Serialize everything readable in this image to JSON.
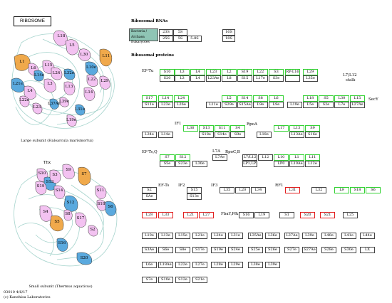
{
  "title": "RIBOSOME",
  "footer": {
    "code": "03010 4/6/17",
    "copyright": "(c) Kanehisa Laboratories"
  },
  "captions": {
    "large": "Large subunit (Haloarcula marismortui)",
    "small": "Small subunit (Thermus aquaticus)"
  },
  "rna": {
    "header": "Ribosomal RNAs",
    "legend1": "Bacteria / Archaea",
    "legend2": "Eukaryotes",
    "row1": [
      "23S",
      "5S",
      "16S"
    ],
    "row2": [
      "25S",
      "5S",
      "5.8S",
      "18S"
    ]
  },
  "proteins_header": "Ribosomal proteins",
  "tags": {
    "eftu": "EF-Tu",
    "l7l12": "L7/L12",
    "stalk": "stalk",
    "secy": "SecY",
    "if1": "IF1",
    "rpoa": "RpoA",
    "eftsq": "EF-Ts,Q",
    "rpocb": "RpoC,B",
    "l7a": "L7A",
    "efts": "EF-Ts",
    "if2": "IF2",
    "if3": "IF3",
    "rf1": "RF1",
    "fbay": "FbaY,Pfk"
  },
  "rows": [
    {
      "y": 97,
      "boxes": [
        [
          "S10",
          224,
          "g"
        ],
        [
          "L3",
          245,
          "g"
        ],
        [
          "L4",
          267,
          "g"
        ],
        [
          "L23",
          289,
          "g"
        ],
        [
          "L2",
          311,
          "g"
        ],
        [
          "S19",
          333,
          "g"
        ],
        [
          "L22",
          355,
          "g"
        ],
        [
          "S3",
          377,
          "g"
        ],
        [
          "RP-L16",
          400,
          "g"
        ],
        [
          "L29",
          425,
          "g"
        ]
      ]
    },
    {
      "y": 106,
      "boxes": [
        [
          "S20",
          224,
          ""
        ],
        [
          "L3",
          245,
          ""
        ],
        [
          "L4",
          267,
          ""
        ],
        [
          "L23Ae",
          289,
          ""
        ],
        [
          "L8",
          311,
          ""
        ],
        [
          "S15",
          333,
          ""
        ],
        [
          "L17e",
          355,
          ""
        ],
        [
          "S3e",
          377,
          ""
        ],
        [
          "",
          400,
          ""
        ],
        [
          "L35e",
          425,
          ""
        ]
      ]
    },
    {
      "y": 134,
      "boxes": [
        [
          "S17",
          199,
          "g"
        ],
        [
          "L14",
          222,
          "g"
        ],
        [
          "L24",
          244,
          "g"
        ],
        [
          "L5",
          311,
          "g"
        ],
        [
          "S14",
          333,
          "g"
        ],
        [
          "S8",
          355,
          "g"
        ],
        [
          "L6",
          377,
          "g"
        ],
        [
          "L18",
          425,
          "g"
        ],
        [
          "S5",
          447,
          "g"
        ],
        [
          "L30",
          469,
          "g"
        ],
        [
          "L15",
          491,
          "g"
        ]
      ]
    },
    {
      "y": 143,
      "boxes": [
        [
          "S11e",
          199,
          ""
        ],
        [
          "L23e",
          222,
          ""
        ],
        [
          "L26e",
          244,
          ""
        ],
        [
          "L11e",
          289,
          ""
        ],
        [
          "S29e",
          311,
          ""
        ],
        [
          "S15Ae",
          333,
          ""
        ],
        [
          "L9e",
          355,
          ""
        ],
        [
          "L9e",
          377,
          ""
        ],
        [
          "L19e",
          403,
          ""
        ],
        [
          "L5e",
          425,
          ""
        ],
        [
          "S2e",
          447,
          ""
        ],
        [
          "L7e",
          469,
          ""
        ],
        [
          "L27Ae",
          491,
          ""
        ]
      ]
    },
    {
      "y": 176,
      "boxes": [
        [
          "L36",
          257,
          "g"
        ],
        [
          "S13",
          279,
          "g"
        ],
        [
          "S11",
          301,
          "g"
        ],
        [
          "S4",
          323,
          "g"
        ],
        [
          "L17",
          384,
          "g"
        ],
        [
          "L13",
          406,
          "g"
        ],
        [
          "S9",
          428,
          "g"
        ]
      ]
    },
    {
      "y": 185,
      "boxes": [
        [
          "L34e",
          199,
          ""
        ],
        [
          "L14e",
          222,
          ""
        ],
        [
          "S18e",
          279,
          ""
        ],
        [
          "S14e",
          301,
          ""
        ],
        [
          "S9e",
          323,
          ""
        ],
        [
          "L18e",
          360,
          ""
        ],
        [
          "L13Ae",
          406,
          ""
        ],
        [
          "S16e",
          428,
          ""
        ]
      ]
    },
    {
      "y": 217,
      "boxes": [
        [
          "S7",
          224,
          "g"
        ],
        [
          "S12",
          246,
          "g"
        ],
        [
          "L7Ae",
          298,
          ""
        ],
        [
          "L7/L12",
          340,
          ""
        ],
        [
          "L12",
          362,
          ""
        ],
        [
          "L10",
          384,
          "g"
        ],
        [
          "L1",
          406,
          "g"
        ],
        [
          "L11",
          428,
          "g"
        ]
      ]
    },
    {
      "y": 226,
      "boxes": [
        [
          "S5e",
          224,
          ""
        ],
        [
          "S23e",
          246,
          ""
        ],
        [
          "L30e",
          270,
          ""
        ],
        [
          "LP1,LP2",
          340,
          ""
        ],
        [
          "LP0",
          384,
          ""
        ],
        [
          "L10Ae",
          406,
          ""
        ],
        [
          "L12e",
          428,
          ""
        ]
      ]
    },
    {
      "y": 263,
      "boxes": [
        [
          "S2",
          199,
          ""
        ],
        [
          "S15",
          262,
          ""
        ],
        [
          "L35",
          308,
          ""
        ],
        [
          "L20",
          330,
          ""
        ],
        [
          "L34",
          352,
          ""
        ],
        [
          "L31",
          400,
          "r"
        ],
        [
          "L32",
          437,
          ""
        ],
        [
          "L9",
          469,
          "g"
        ],
        [
          "S18",
          491,
          "g"
        ],
        [
          "S6",
          513,
          "g"
        ]
      ]
    },
    {
      "y": 272,
      "boxes": [
        [
          "SAe",
          199,
          ""
        ],
        [
          "S13e",
          262,
          ""
        ]
      ]
    },
    {
      "y": 298,
      "boxes": [
        [
          "L28",
          199,
          "r"
        ],
        [
          "L33",
          222,
          "r"
        ],
        [
          "L21",
          257,
          "r"
        ],
        [
          "L27",
          279,
          "r"
        ],
        [
          "S16",
          335,
          ""
        ],
        [
          "L19",
          357,
          ""
        ],
        [
          "S1",
          392,
          ""
        ],
        [
          "S20",
          421,
          "r"
        ],
        [
          "S21",
          449,
          "r"
        ],
        [
          "L25",
          481,
          ""
        ]
      ]
    },
    {
      "y": 327,
      "boxes": [
        [
          "L10e",
          199,
          ""
        ],
        [
          "L13e",
          222,
          ""
        ],
        [
          "L15e",
          246,
          ""
        ],
        [
          "L21e",
          270,
          ""
        ],
        [
          "L24e",
          296,
          ""
        ],
        [
          "L31e",
          320,
          ""
        ],
        [
          "L35Ae",
          348,
          ""
        ],
        [
          "L36e",
          372,
          ""
        ],
        [
          "L37Ae",
          399,
          ""
        ],
        [
          "L39e",
          424,
          ""
        ],
        [
          "L40e",
          451,
          ""
        ],
        [
          "L41e",
          479,
          ""
        ],
        [
          "L44e",
          505,
          ""
        ]
      ]
    },
    {
      "y": 347,
      "boxes": [
        [
          "S3Ae",
          199,
          ""
        ],
        [
          "S6e",
          222,
          ""
        ],
        [
          "S8e",
          246,
          ""
        ],
        [
          "S17e",
          270,
          ""
        ],
        [
          "S19e",
          296,
          ""
        ],
        [
          "S24e",
          320,
          ""
        ],
        [
          "S25e",
          348,
          ""
        ],
        [
          "S26e",
          372,
          ""
        ],
        [
          "S27e",
          399,
          ""
        ],
        [
          "S27Ae",
          424,
          ""
        ],
        [
          "S28e",
          451,
          ""
        ],
        [
          "S30e",
          479,
          ""
        ],
        [
          "LX",
          505,
          ""
        ]
      ]
    },
    {
      "y": 368,
      "boxes": [
        [
          "L6e",
          199,
          ""
        ],
        [
          "L18Ae",
          222,
          ""
        ],
        [
          "L22e",
          246,
          ""
        ],
        [
          "L27e",
          270,
          ""
        ],
        [
          "L28e",
          296,
          ""
        ],
        [
          "L29e",
          320,
          ""
        ],
        [
          "L38e",
          348,
          ""
        ],
        [
          "L39e",
          372,
          ""
        ]
      ]
    },
    {
      "y": 389,
      "boxes": [
        [
          "S7e",
          199,
          ""
        ],
        [
          "S10e",
          222,
          ""
        ],
        [
          "S12e",
          246,
          ""
        ],
        [
          "S21e",
          270,
          ""
        ]
      ]
    }
  ],
  "large_subunit": {
    "labels": [
      "L18",
      "L5",
      "L30",
      "L11",
      "L1",
      "L10e",
      "L15",
      "L6",
      "L24",
      "L14e",
      "L32e",
      "L22",
      "L21e",
      "L3",
      "L13",
      "L14",
      "L4",
      "L29",
      "L37Ae",
      "L39e",
      "L31e",
      "L19e",
      "L23",
      "L22e"
    ]
  },
  "small_subunit": {
    "labels": [
      "Thx",
      "S9",
      "S10",
      "S13",
      "S3",
      "S7",
      "S19",
      "S14",
      "S11",
      "S18",
      "S6",
      "S12",
      "S4",
      "S5",
      "S17",
      "S16",
      "S8",
      "S20",
      "S2"
    ]
  },
  "colors": {
    "pink": "#f3c2f1",
    "blue": "#5aa9de",
    "orange": "#f0a94b",
    "teal": "#8fc5b5",
    "green": "#35d235",
    "red": "#e22020"
  }
}
